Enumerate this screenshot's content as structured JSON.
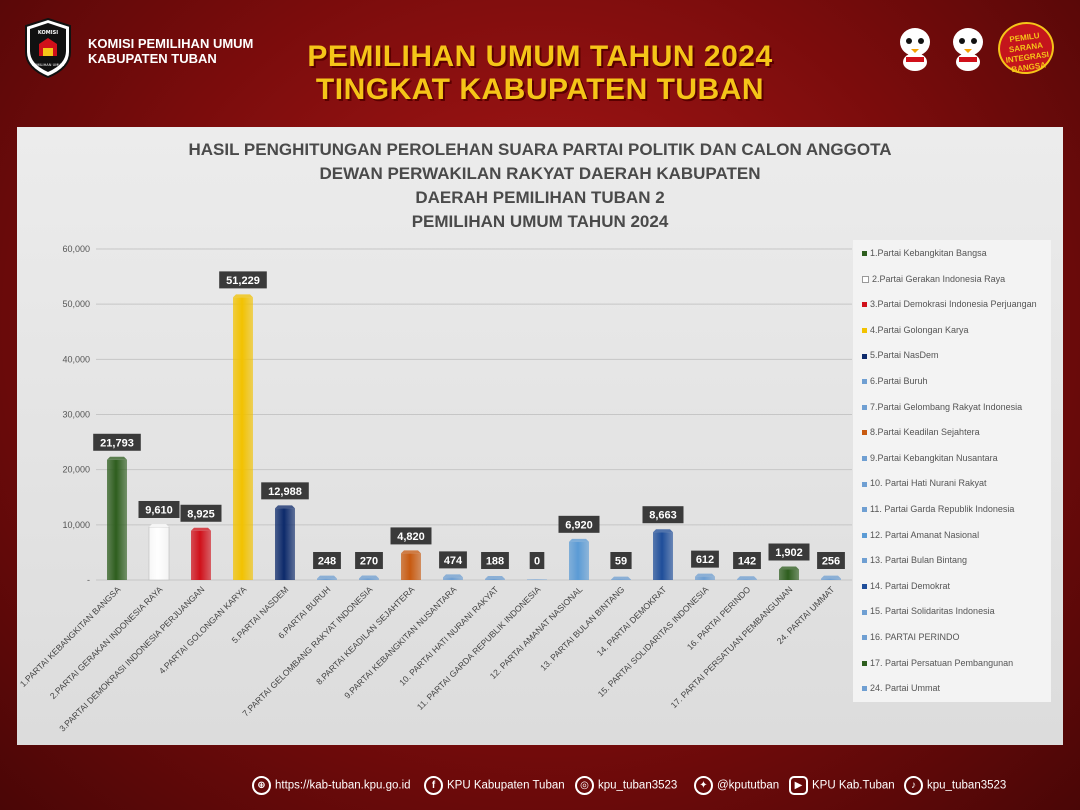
{
  "header": {
    "org_line1": "KOMISI PEMILIHAN UMUM",
    "org_line2": "KABUPATEN TUBAN",
    "logo_text_top": "KOMISI",
    "logo_text_bottom": "PEMILIHAN UMUM",
    "title_line1": "PEMILIHAN UMUM TAHUN 2024",
    "title_line2": "TINGKAT KABUPATEN TUBAN",
    "slogan_line1": "PEMILU",
    "slogan_line2": "SARANA",
    "slogan_line3": "INTEGRASI",
    "slogan_line4": "BANGSA",
    "colors": {
      "title": "#f5c518",
      "background": "#8c1010"
    }
  },
  "chart_data": {
    "type": "bar",
    "title": [
      "HASIL PENGHITUNGAN PEROLEHAN SUARA PARTAI POLITIK DAN CALON ANGGOTA",
      "DEWAN PERWAKILAN RAKYAT DAERAH KABUPATEN",
      "DAERAH PEMILIHAN TUBAN 2",
      "PEMILIHAN UMUM TAHUN 2024"
    ],
    "categories": [
      "1.PARTAI KEBANGKITAN BANGSA",
      "2.PARTAI GERAKAN INDONESIA RAYA",
      "3.PARTAI DEMOKRASI INDONESIA PERJUANGAN",
      "4.PARTAI GOLONGAN KARYA",
      "5.PARTAI NASDEM",
      "6.PARTAI BURUH",
      "7.PARTAI GELOMBANG RAKYAT INDONESIA",
      "8.PARTAI KEADILAN SEJAHTERA",
      "9.PARTAI KEBANGKITAN NUSANTARA",
      "10.  PARTAI HATI NURANI RAKYAT",
      "11. PARTAI GARDA REPUBLIK INDONESIA",
      "12. PARTAI AMANAT NASIONAL",
      "13. PARTAI BULAN BINTANG",
      "14. PARTAI DEMOKRAT",
      "15. PARTAI SOLIDARITAS INDONESIA",
      "16. PARTAI PERINDO",
      "17. PARTAI PERSATUAN PEMBANGUNAN",
      "24. PARTAI UMMAT"
    ],
    "values": [
      21793,
      9610,
      8925,
      51229,
      12988,
      248,
      270,
      4820,
      474,
      188,
      0,
      6920,
      59,
      8663,
      612,
      142,
      1902,
      256
    ],
    "value_labels": [
      "21,793",
      "9,610",
      "8,925",
      "51,229",
      "12,988",
      "248",
      "270",
      "4,820",
      "474",
      "188",
      "0",
      "6,920",
      "59",
      "8,663",
      "612",
      "142",
      "1,902",
      "256"
    ],
    "colors": [
      "#2e5e1e",
      "#ffffff",
      "#d0101a",
      "#f2c200",
      "#0d2a6b",
      "#6f9fd2",
      "#6f9fd2",
      "#c85a10",
      "#6f9fd2",
      "#6f9fd2",
      "#6f9fd2",
      "#5b9bd5",
      "#6f9fd2",
      "#1f4e9a",
      "#6f9fd2",
      "#6f9fd2",
      "#2e5e1e",
      "#6f9fd2"
    ],
    "ylim": [
      0,
      60000
    ],
    "yticks": [
      0,
      10000,
      20000,
      30000,
      40000,
      50000,
      60000
    ],
    "ytick_labels": [
      "-",
      "10,000",
      "20,000",
      "30,000",
      "40,000",
      "50,000",
      "60,000"
    ],
    "grid": true,
    "legend_position": "right",
    "legend": [
      "1.Partai Kebangkitan Bangsa",
      "2.Partai Gerakan Indonesia Raya",
      "3.Partai Demokrasi Indonesia Perjuangan",
      "4.Partai Golongan Karya",
      "5.Partai NasDem",
      "6.Partai Buruh",
      "7.Partai Gelombang Rakyat Indonesia",
      "8.Partai Keadilan Sejahtera",
      "9.Partai Kebangkitan Nusantara",
      "10.  Partai Hati Nurani Rakyat",
      "11. Partai Garda Republik Indonesia",
      "12. Partai Amanat Nasional",
      "13. Partai Bulan Bintang",
      "14. Partai Demokrat",
      "15. Partai Solidaritas Indonesia",
      "16. PARTAI PERINDO",
      "17. Partai Persatuan Pembangunan",
      "24. Partai Ummat"
    ]
  },
  "footer": {
    "website": "https://kab-tuban.kpu.go.id",
    "facebook": "KPU Kabupaten Tuban",
    "instagram": "kpu_tuban3523",
    "twitter": "@kpututban",
    "youtube": "KPU Kab.Tuban",
    "tiktok": "kpu_tuban3523"
  }
}
